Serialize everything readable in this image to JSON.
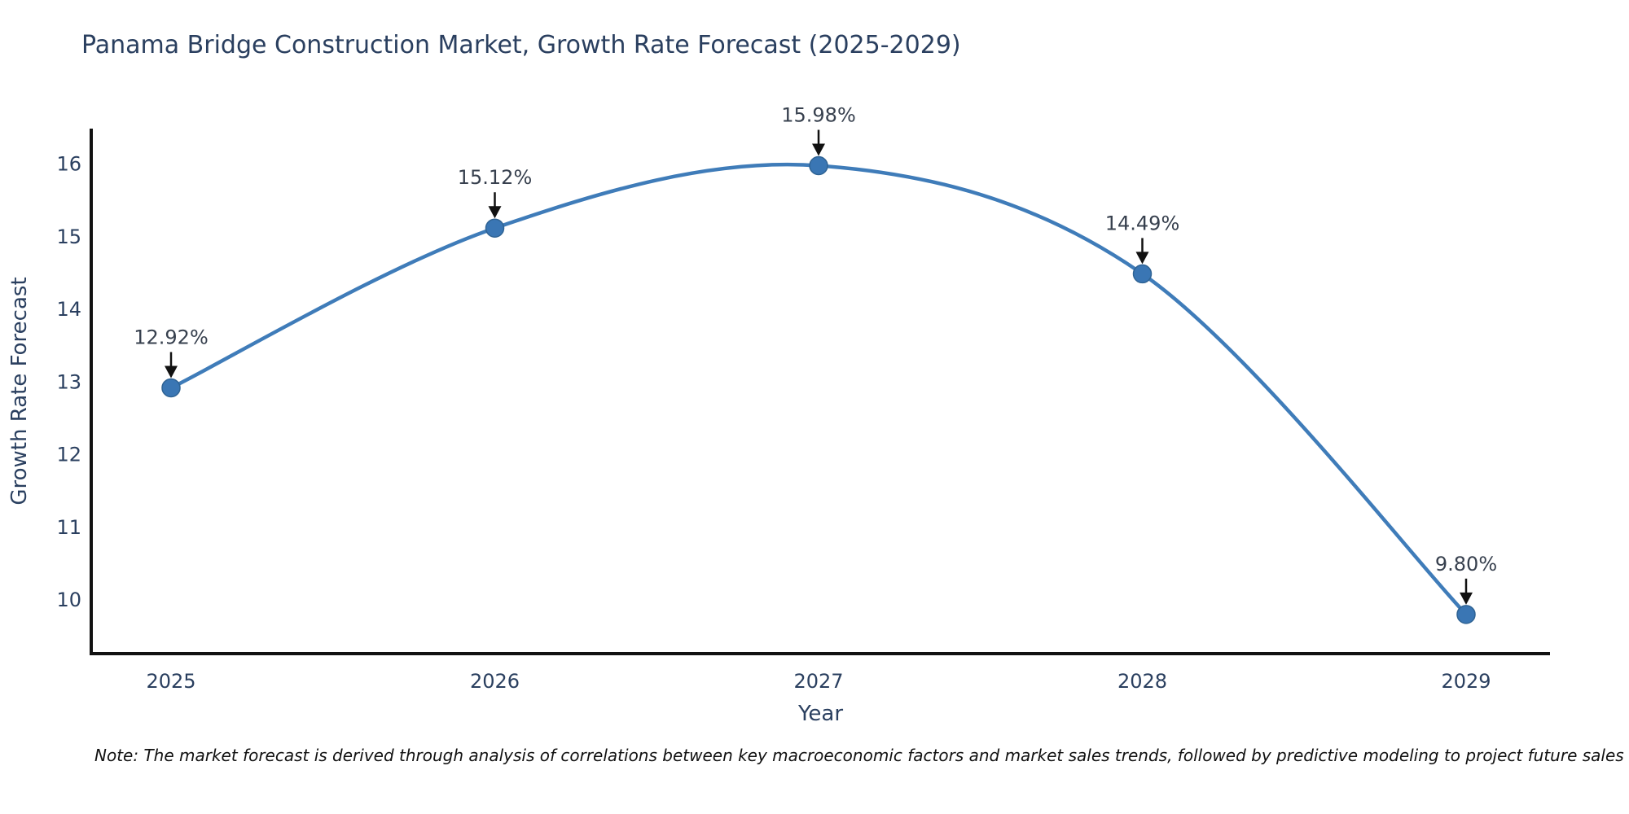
{
  "title": "Panama Bridge Construction Market, Growth Rate Forecast (2025-2029)",
  "note": "Note: The market forecast is derived through analysis of correlations between key macroeconomic factors and market sales trends, followed by predictive modeling to project future sales",
  "chart_data": {
    "type": "line",
    "title": "Panama Bridge Construction Market, Growth Rate Forecast (2025-2029)",
    "x": [
      "2025",
      "2026",
      "2027",
      "2028",
      "2029"
    ],
    "series": [
      {
        "name": "Growth Rate Forecast",
        "values": [
          12.92,
          15.12,
          15.98,
          14.49,
          9.8
        ]
      }
    ],
    "point_labels": [
      "12.92%",
      "15.12%",
      "15.98%",
      "14.49%",
      "9.80%"
    ],
    "xlabel": "Year",
    "ylabel": "Growth Rate Forecast",
    "yticks": [
      10,
      11,
      12,
      13,
      14,
      15,
      16
    ],
    "ylim": [
      9.26,
      16.49
    ],
    "line_shape": "spline",
    "grid": false,
    "legend": "none",
    "annotations_have_arrows": true,
    "colors": {
      "line": "#3f7cb9",
      "marker_fill": "#3a76b4",
      "marker_edge": "#2f6394",
      "axis_line": "#111111",
      "tick_text": "#2a3f5f",
      "axis_title_text": "#2a3f5f",
      "annotation_text": "#37404e",
      "annotation_arrow": "#111111",
      "background": "#ffffff"
    }
  }
}
